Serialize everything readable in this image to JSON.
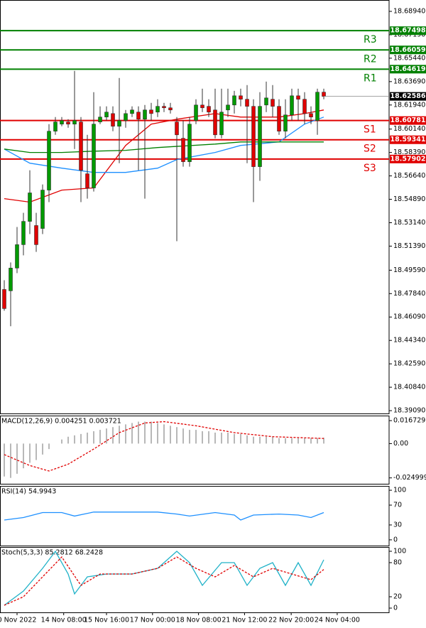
{
  "chart_data": [
    {
      "type": "candlestick",
      "xlim": [
        -0.667,
        60.22
      ],
      "ylim": [
        18.3888,
        18.6979
      ],
      "yticks": [
        {
          "value": 18.6894,
          "label": "18.68940"
        },
        {
          "value": 18.6719,
          "label": "18.67190"
        },
        {
          "value": 18.6544,
          "label": "18.65440"
        },
        {
          "value": 18.6369,
          "label": "18.63690"
        },
        {
          "value": 18.6194,
          "label": "18.61940"
        },
        {
          "value": 18.6014,
          "label": "18.60140"
        },
        {
          "value": 18.5839,
          "label": "18.58390"
        },
        {
          "value": 18.5664,
          "label": "18.56640"
        },
        {
          "value": 18.5489,
          "label": "18.54890"
        },
        {
          "value": 18.5314,
          "label": "18.53140"
        },
        {
          "value": 18.5139,
          "label": "18.51390"
        },
        {
          "value": 18.4959,
          "label": "18.49590"
        },
        {
          "value": 18.4784,
          "label": "18.47840"
        },
        {
          "value": 18.4609,
          "label": "18.46090"
        },
        {
          "value": 18.4434,
          "label": "18.44340"
        },
        {
          "value": 18.4259,
          "label": "18.42590"
        },
        {
          "value": 18.4084,
          "label": "18.40840"
        },
        {
          "value": 18.3909,
          "label": "18.39090"
        }
      ],
      "up_color": "#009a00",
      "down_color": "#e00000",
      "open": [
        18.4815,
        18.4805,
        18.4975,
        18.515,
        18.5324,
        18.5293,
        18.5271,
        18.5558,
        18.5998,
        18.6051,
        18.6067,
        18.6051,
        18.6067,
        18.568,
        18.5574,
        18.6067,
        18.6104,
        18.613,
        18.6035,
        18.6078,
        18.613,
        18.6141,
        18.6088,
        18.6157,
        18.6141,
        18.6184,
        18.6173,
        18.6067,
        18.5945,
        18.577,
        18.6078,
        18.6194,
        18.6184,
        18.6157,
        18.5971,
        18.6157,
        18.6194,
        18.6263,
        18.6237,
        18.6184,
        18.5733,
        18.6194,
        18.6237,
        18.6184,
        18.5998,
        18.612,
        18.6263,
        18.6237,
        18.613,
        18.6078,
        18.629
      ],
      "high": [
        18.4884,
        18.5017,
        18.5282,
        18.5388,
        18.5706,
        18.5388,
        18.56,
        18.6051,
        18.6104,
        18.6104,
        18.6088,
        18.6449,
        18.6104,
        18.5971,
        18.629,
        18.6184,
        18.6184,
        18.6184,
        18.6396,
        18.6157,
        18.6184,
        18.6184,
        18.6194,
        18.621,
        18.6237,
        18.621,
        18.621,
        18.6104,
        18.6078,
        18.6104,
        18.6237,
        18.6316,
        18.6237,
        18.6316,
        18.6316,
        18.6316,
        18.63,
        18.6316,
        18.6343,
        18.6237,
        18.629,
        18.6369,
        18.6343,
        18.6237,
        18.6237,
        18.6316,
        18.6316,
        18.629,
        18.6184,
        18.6316,
        18.6316
      ],
      "low": [
        18.4656,
        18.454,
        18.4937,
        18.507,
        18.5229,
        18.5096,
        18.5229,
        18.5468,
        18.5971,
        18.6035,
        18.6024,
        18.5865,
        18.5468,
        18.5494,
        18.5547,
        18.6051,
        18.6078,
        18.5998,
        18.5759,
        18.6024,
        18.6104,
        18.5706,
        18.5494,
        18.6078,
        18.6104,
        18.6141,
        18.613,
        18.5176,
        18.5733,
        18.5733,
        18.6051,
        18.6141,
        18.6104,
        18.5945,
        18.5945,
        18.6104,
        18.613,
        18.6184,
        18.5759,
        18.5468,
        18.5627,
        18.6141,
        18.6104,
        18.5971,
        18.5945,
        18.6078,
        18.6078,
        18.6051,
        18.6051,
        18.5971,
        18.6237
      ],
      "close": [
        18.4672,
        18.4975,
        18.515,
        18.5324,
        18.5537,
        18.515,
        18.5558,
        18.5998,
        18.6067,
        18.6078,
        18.6051,
        18.6078,
        18.5706,
        18.5574,
        18.6051,
        18.6104,
        18.6141,
        18.6035,
        18.6078,
        18.613,
        18.6157,
        18.6088,
        18.6157,
        18.613,
        18.6184,
        18.6173,
        18.6157,
        18.5971,
        18.577,
        18.6051,
        18.6194,
        18.6173,
        18.6141,
        18.5971,
        18.6141,
        18.6194,
        18.6263,
        18.6237,
        18.6184,
        18.5733,
        18.6184,
        18.6247,
        18.6184,
        18.5998,
        18.612,
        18.6263,
        18.6237,
        18.613,
        18.6104,
        18.629,
        18.62586
      ],
      "last_price": 18.62586,
      "series": [
        {
          "color": "#e00000",
          "x": [
            0,
            4,
            9,
            14,
            19,
            23,
            27,
            33,
            37,
            43,
            47,
            50
          ],
          "values": [
            18.5494,
            18.5468,
            18.5558,
            18.5574,
            18.5892,
            18.6051,
            18.6088,
            18.613,
            18.6104,
            18.6104,
            18.613,
            18.6157
          ]
        },
        {
          "color": "#1e90ff",
          "x": [
            0,
            4,
            9,
            14,
            19,
            24,
            27,
            33,
            37,
            43,
            47,
            50
          ],
          "values": [
            18.5865,
            18.5759,
            18.5722,
            18.569,
            18.569,
            18.5722,
            18.5786,
            18.5839,
            18.5892,
            18.5918,
            18.6051,
            18.6104
          ]
        },
        {
          "color": "#008000",
          "x": [
            0,
            4,
            9,
            14,
            19,
            24,
            33,
            37,
            43,
            50
          ],
          "values": [
            18.5865,
            18.5839,
            18.5839,
            18.5849,
            18.5855,
            18.5876,
            18.5902,
            18.5918,
            18.5918,
            18.5918
          ]
        }
      ],
      "levels": [
        {
          "name": "R3",
          "value": 18.67498,
          "color": "#008000"
        },
        {
          "name": "R2",
          "value": 18.66059,
          "color": "#008000"
        },
        {
          "name": "R1",
          "value": 18.64619,
          "color": "#008000"
        },
        {
          "name": "S1",
          "value": 18.60781,
          "color": "#e00000"
        },
        {
          "name": "S2",
          "value": 18.59341,
          "color": "#e00000"
        },
        {
          "name": "S3",
          "value": 18.57902,
          "color": "#e00000"
        }
      ]
    },
    {
      "type": "macd",
      "title": "MACD(12,26,9) 0.004251 0.003721",
      "xlim": [
        -0.667,
        60.22
      ],
      "ylim": [
        -0.0293,
        0.0204
      ],
      "yticks": [
        0.016729,
        {
          "value": 0,
          "label": "0.00"
        },
        -0.024999
      ],
      "histogram_color": "#a0a0a0",
      "values": [
        -0.024,
        -0.025,
        -0.022,
        -0.018,
        -0.014,
        -0.012,
        -0.008,
        -0.004,
        0.0,
        0.003,
        0.005,
        0.006,
        0.007,
        0.008,
        0.009,
        0.01,
        0.011,
        0.012,
        0.013,
        0.014,
        0.015,
        0.016,
        0.016,
        0.016,
        0.015,
        0.014,
        0.013,
        0.012,
        0.011,
        0.01,
        0.01,
        0.009,
        0.009,
        0.008,
        0.008,
        0.008,
        0.007,
        0.007,
        0.006,
        0.005,
        0.005,
        0.005,
        0.005,
        0.004,
        0.004,
        0.004,
        0.004,
        0.004,
        0.004,
        0.004,
        0.004251
      ],
      "series": [
        {
          "color": "#e00000",
          "dashed": true,
          "x": [
            0,
            4,
            7,
            10,
            14,
            18,
            22,
            25,
            30,
            36,
            42,
            50
          ],
          "values": [
            -0.008,
            -0.016,
            -0.02,
            -0.015,
            -0.004,
            0.008,
            0.015,
            0.016,
            0.013,
            0.008,
            0.005,
            0.003721
          ]
        }
      ]
    },
    {
      "type": "line",
      "title": "RSI(14) 54.9943",
      "xlim": [
        -0.667,
        60.22
      ],
      "ylim": [
        -11.6,
        108.7
      ],
      "yticks": [
        100,
        70,
        30,
        0
      ],
      "series": [
        {
          "color": "#1e90ff",
          "x": [
            0,
            3,
            6,
            9,
            11,
            14,
            19,
            24,
            27,
            29,
            33,
            36,
            37,
            39,
            43,
            46,
            48,
            50
          ],
          "values": [
            40,
            45,
            55,
            55,
            48,
            56,
            56,
            56,
            52,
            48,
            55,
            50,
            40,
            50,
            52,
            50,
            45,
            55
          ]
        }
      ]
    },
    {
      "type": "line",
      "title": "Stoch(5,3,3) 85.2812 68.2428",
      "xlim": [
        -0.667,
        60.22
      ],
      "ylim": [
        -7.5,
        107.5
      ],
      "yticks": [
        100,
        80,
        20,
        0
      ],
      "xticks": [
        {
          "value": 2,
          "label": "0 Nov 2022"
        },
        {
          "value": 9.3,
          "label": "14 Nov 08:00"
        },
        {
          "value": 16,
          "label": "15 Nov 16:00"
        },
        {
          "value": 23.2,
          "label": "17 Nov 00:00"
        },
        {
          "value": 30.4,
          "label": "18 Nov 08:00"
        },
        {
          "value": 37.6,
          "label": "21 Nov 12:00"
        },
        {
          "value": 44.9,
          "label": "22 Nov 20:00"
        },
        {
          "value": 52.1,
          "label": "24 Nov 04:00"
        }
      ],
      "series": [
        {
          "color": "#20b2c8",
          "x": [
            0,
            3,
            6,
            8,
            10,
            11,
            13,
            16,
            20,
            24,
            27,
            29,
            31,
            34,
            36,
            38,
            40,
            42,
            44,
            46,
            48,
            50
          ],
          "values": [
            5,
            30,
            70,
            100,
            60,
            25,
            55,
            60,
            60,
            70,
            100,
            80,
            40,
            80,
            80,
            40,
            70,
            80,
            40,
            80,
            40,
            85
          ]
        },
        {
          "color": "#e00000",
          "dashed": true,
          "x": [
            0,
            3,
            6,
            9,
            12,
            15,
            20,
            24,
            27,
            30,
            33,
            36,
            39,
            42,
            45,
            48,
            50
          ],
          "values": [
            5,
            20,
            55,
            90,
            40,
            60,
            60,
            70,
            90,
            70,
            55,
            75,
            55,
            70,
            60,
            50,
            68
          ]
        }
      ]
    }
  ]
}
